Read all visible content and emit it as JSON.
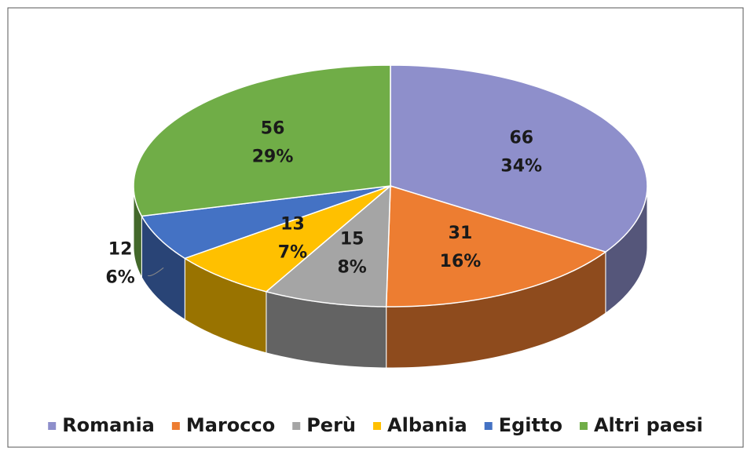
{
  "chart_data": {
    "type": "pie3d",
    "categories": [
      "Romania",
      "Marocco",
      "Perù",
      "Albania",
      "Egitto",
      "Altri paesi"
    ],
    "values": [
      66,
      31,
      15,
      13,
      12,
      56
    ],
    "percent_labels": [
      "34%",
      "16%",
      "8%",
      "7%",
      "6%",
      "29%"
    ],
    "colors": [
      "#8e8fcb",
      "#ed7d31",
      "#a5a5a5",
      "#ffc000",
      "#4472c4",
      "#70ad47"
    ],
    "legend": "bottom"
  }
}
